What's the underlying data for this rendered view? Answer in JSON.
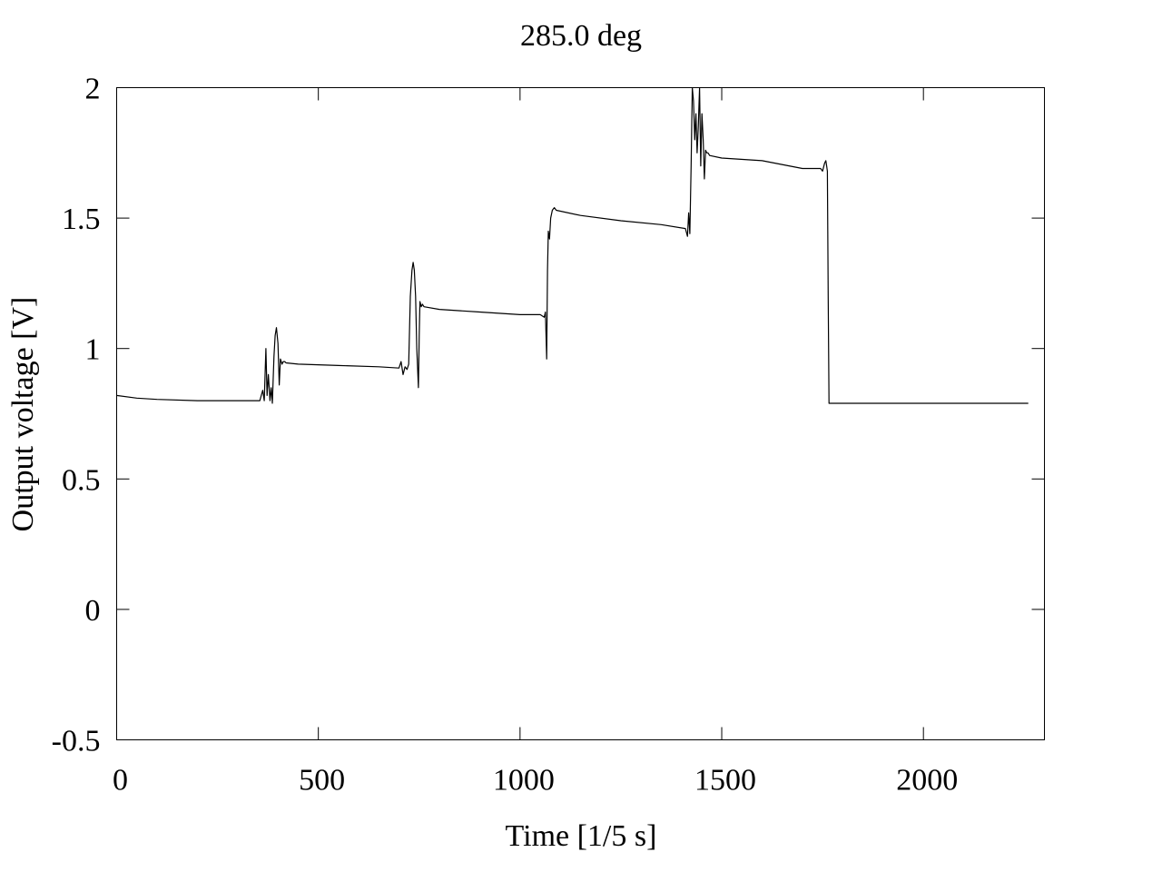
{
  "chart_data": {
    "type": "line",
    "title": "285.0 deg",
    "xlabel": "Time [1/5 s]",
    "ylabel": "Output voltage [V]",
    "xlim": [
      0,
      2300
    ],
    "ylim": [
      -0.5,
      2
    ],
    "xticks": [
      0,
      500,
      1000,
      1500,
      2000
    ],
    "xtick_labels": [
      "0",
      "500",
      "1000",
      "1500",
      "2000"
    ],
    "yticks": [
      -0.5,
      0,
      0.5,
      1,
      1.5,
      2
    ],
    "ytick_labels": [
      "-0.5",
      "0",
      "0.5",
      "1",
      "1.5",
      "2"
    ],
    "grid": false,
    "line_color": "#000000",
    "series": [
      {
        "x": [
          0,
          50,
          100,
          200,
          300,
          355,
          362,
          366,
          370,
          373,
          376,
          380,
          383,
          386,
          390,
          393,
          396,
          400,
          403,
          406,
          410,
          413,
          417,
          420,
          450,
          550,
          650,
          700,
          705,
          710,
          715,
          720,
          724,
          728,
          732,
          735,
          738,
          741,
          744,
          748,
          750,
          752,
          755,
          758,
          762,
          800,
          900,
          1000,
          1050,
          1060,
          1063,
          1066,
          1068,
          1070,
          1073,
          1076,
          1080,
          1085,
          1090,
          1150,
          1250,
          1350,
          1410,
          1415,
          1418,
          1421,
          1424,
          1427,
          1430,
          1433,
          1436,
          1439,
          1442,
          1445,
          1448,
          1451,
          1454,
          1457,
          1460,
          1463,
          1466,
          1470,
          1500,
          1600,
          1700,
          1745,
          1750,
          1755,
          1758,
          1760,
          1762,
          1764,
          1766,
          1768,
          1775,
          1800,
          1900,
          2000,
          2100,
          2200,
          2260
        ],
        "y": [
          0.82,
          0.81,
          0.805,
          0.8,
          0.8,
          0.8,
          0.84,
          0.8,
          1.0,
          0.82,
          0.9,
          0.8,
          0.85,
          0.79,
          0.97,
          1.05,
          1.08,
          1.02,
          0.86,
          0.96,
          0.94,
          0.95,
          0.95,
          0.945,
          0.94,
          0.935,
          0.93,
          0.925,
          0.95,
          0.9,
          0.93,
          0.92,
          0.94,
          1.2,
          1.3,
          1.33,
          1.3,
          1.2,
          1.0,
          0.85,
          1.05,
          1.18,
          1.16,
          1.17,
          1.16,
          1.15,
          1.14,
          1.13,
          1.13,
          1.12,
          1.14,
          0.96,
          1.3,
          1.45,
          1.42,
          1.5,
          1.53,
          1.54,
          1.53,
          1.51,
          1.49,
          1.475,
          1.46,
          1.43,
          1.52,
          1.44,
          1.7,
          2.0,
          1.95,
          1.8,
          1.9,
          1.75,
          1.85,
          2.0,
          1.7,
          1.9,
          1.8,
          1.65,
          1.76,
          1.75,
          1.75,
          1.74,
          1.73,
          1.72,
          1.69,
          1.69,
          1.68,
          1.71,
          1.72,
          1.7,
          1.68,
          1.2,
          0.79,
          0.79,
          0.79,
          0.79,
          0.79,
          0.79,
          0.79,
          0.79,
          0.79
        ]
      }
    ]
  }
}
